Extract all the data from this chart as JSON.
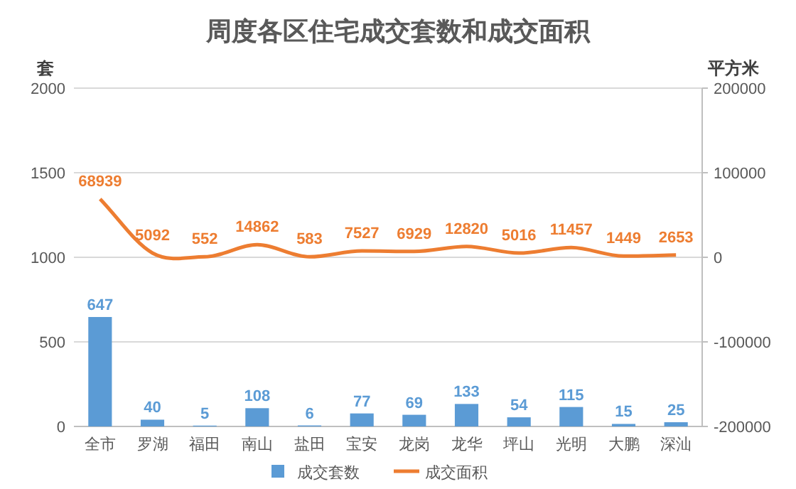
{
  "chart_data": {
    "type": "bar",
    "title": "周度各区住宅成交套数和成交面积",
    "ylabel": "套",
    "y2label": "平方米",
    "categories": [
      "全市",
      "罗湖",
      "福田",
      "南山",
      "盐田",
      "宝安",
      "龙岗",
      "龙华",
      "坪山",
      "光明",
      "大鹏",
      "深汕"
    ],
    "series": [
      {
        "name": "成交套数",
        "color": "#5b9bd5",
        "values": [
          647,
          40,
          5,
          108,
          6,
          77,
          69,
          133,
          54,
          115,
          15,
          25
        ]
      },
      {
        "name": "成交面积",
        "type": "line",
        "axis": "y2",
        "color": "#ed7d31",
        "values": [
          68939,
          5092,
          552,
          14862,
          583,
          7527,
          6929,
          12820,
          5016,
          11457,
          1449,
          2653
        ]
      }
    ],
    "ylim": [
      0,
      2000
    ],
    "yticks": [
      0,
      500,
      1000,
      1500,
      2000
    ],
    "y2lim": [
      -200000,
      200000
    ],
    "y2ticks": [
      -200000,
      -100000,
      0,
      100000,
      200000
    ],
    "grid": "y",
    "legend": "bottom",
    "data_labels": true
  }
}
